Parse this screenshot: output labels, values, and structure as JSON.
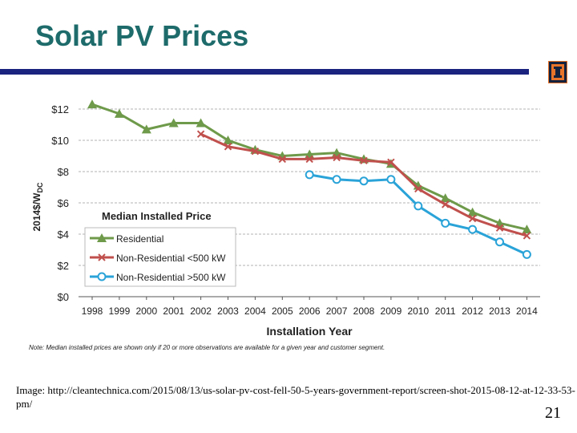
{
  "slide": {
    "title": "Solar PV Prices",
    "caption": "Image: http://cleantechnica.com/2015/08/13/us-solar-pv-cost-fell-50-5-years-government-report/screen-shot-2015-08-12-at-12-33-53-pm/",
    "page_number": "21",
    "accent_color": "#1a237e",
    "title_color": "#1e6b6b",
    "logo_icon": "illinois-block-i-icon"
  },
  "chart_data": {
    "type": "line",
    "xlabel": "Installation Year",
    "ylabel": "2014$/WDC",
    "ylim": [
      0,
      12
    ],
    "yticks": [
      "$0",
      "$2",
      "$4",
      "$6",
      "$8",
      "$10",
      "$12"
    ],
    "categories": [
      "1998",
      "1999",
      "2000",
      "2001",
      "2002",
      "2003",
      "2004",
      "2005",
      "2006",
      "2007",
      "2008",
      "2009",
      "2010",
      "2011",
      "2012",
      "2013",
      "2014"
    ],
    "grid": true,
    "legend_title": "Median Installed Price",
    "legend_position": "left-center",
    "note": "Note: Median installed prices are shown only if 20 or more observations are available for a given year and customer segment.",
    "series": [
      {
        "name": "Residential",
        "color": "#6e9a4a",
        "marker": "triangle",
        "values": [
          12.3,
          11.7,
          10.7,
          11.1,
          11.1,
          10.0,
          9.4,
          9.0,
          9.1,
          9.2,
          8.8,
          8.5,
          7.1,
          6.3,
          5.4,
          4.7,
          4.3
        ]
      },
      {
        "name": "Non-Residential <500 kW",
        "color": "#c0504d",
        "marker": "x",
        "values": [
          null,
          null,
          null,
          null,
          10.4,
          9.6,
          9.3,
          8.8,
          8.8,
          8.9,
          8.7,
          8.6,
          6.9,
          5.9,
          5.0,
          4.4,
          3.9
        ]
      },
      {
        "name": "Non-Residential >500 kW",
        "color": "#2aa3d8",
        "marker": "circle",
        "values": [
          null,
          null,
          null,
          null,
          null,
          null,
          null,
          null,
          7.8,
          7.5,
          7.4,
          7.5,
          5.8,
          4.7,
          4.3,
          3.5,
          2.7
        ]
      }
    ]
  }
}
